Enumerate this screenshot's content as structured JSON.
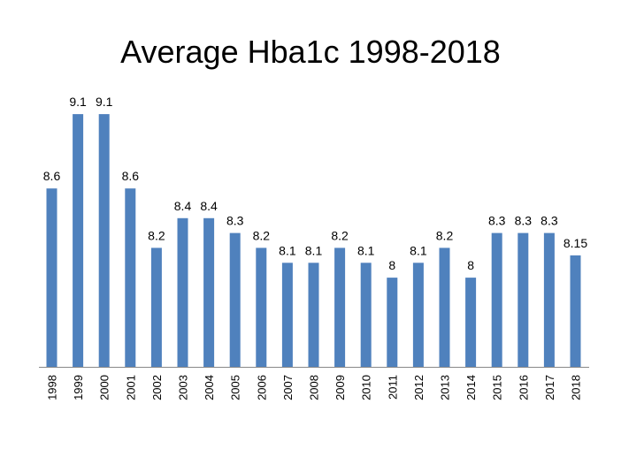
{
  "chart_data": {
    "type": "bar",
    "title": "Average Hba1c 1998-2018",
    "xlabel": "",
    "ylabel": "",
    "categories": [
      "1998",
      "1999",
      "2000",
      "2001",
      "2002",
      "2003",
      "2004",
      "2005",
      "2006",
      "2007",
      "2008",
      "2009",
      "2010",
      "2011",
      "2012",
      "2013",
      "2014",
      "2015",
      "2016",
      "2017",
      "2018"
    ],
    "values": [
      8.6,
      9.1,
      9.1,
      8.6,
      8.2,
      8.4,
      8.4,
      8.3,
      8.2,
      8.1,
      8.1,
      8.2,
      8.1,
      8,
      8.1,
      8.2,
      8,
      8.3,
      8.3,
      8.3,
      8.15
    ],
    "data_labels": [
      "8.6",
      "9.1",
      "9.1",
      "8.6",
      "8.2",
      "8.4",
      "8.4",
      "8.3",
      "8.2",
      "8.1",
      "8.1",
      "8.2",
      "8.1",
      "8",
      "8.1",
      "8.2",
      "8",
      "8.3",
      "8.3",
      "8.3",
      "8.15"
    ],
    "ylim": [
      7.4,
      9.1
    ],
    "grid": false,
    "legend": "none",
    "bar_color": "#4F81BD"
  }
}
